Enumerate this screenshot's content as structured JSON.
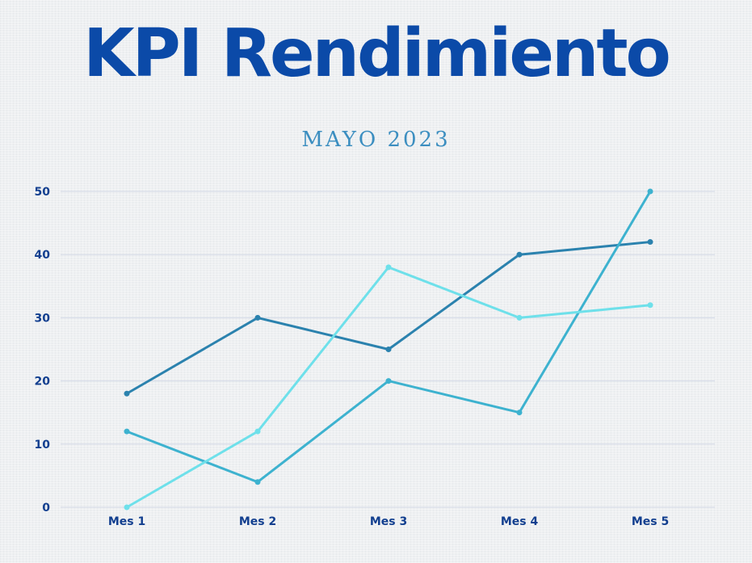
{
  "title": "KPI Rendimiento",
  "subtitle": "MAYO 2023",
  "colors": {
    "title": "#0b4aa8",
    "subtitle": "#3b8ec0",
    "axis_text": "#123f8f",
    "grid": "#d3d9e6"
  },
  "chart_data": {
    "type": "line",
    "categories": [
      "Mes 1",
      "Mes 2",
      "Mes 3",
      "Mes 4",
      "Mes 5"
    ],
    "series": [
      {
        "values": [
          18,
          30,
          25,
          40,
          42
        ],
        "color": "#2b82ae"
      },
      {
        "values": [
          12,
          4,
          20,
          15,
          50
        ],
        "color": "#3db2cf"
      },
      {
        "values": [
          0,
          12,
          38,
          30,
          32
        ],
        "color": "#6ee0ea"
      }
    ],
    "yticks": [
      0,
      10,
      20,
      30,
      40,
      50
    ],
    "ylim": [
      0,
      50
    ],
    "grid": true
  }
}
